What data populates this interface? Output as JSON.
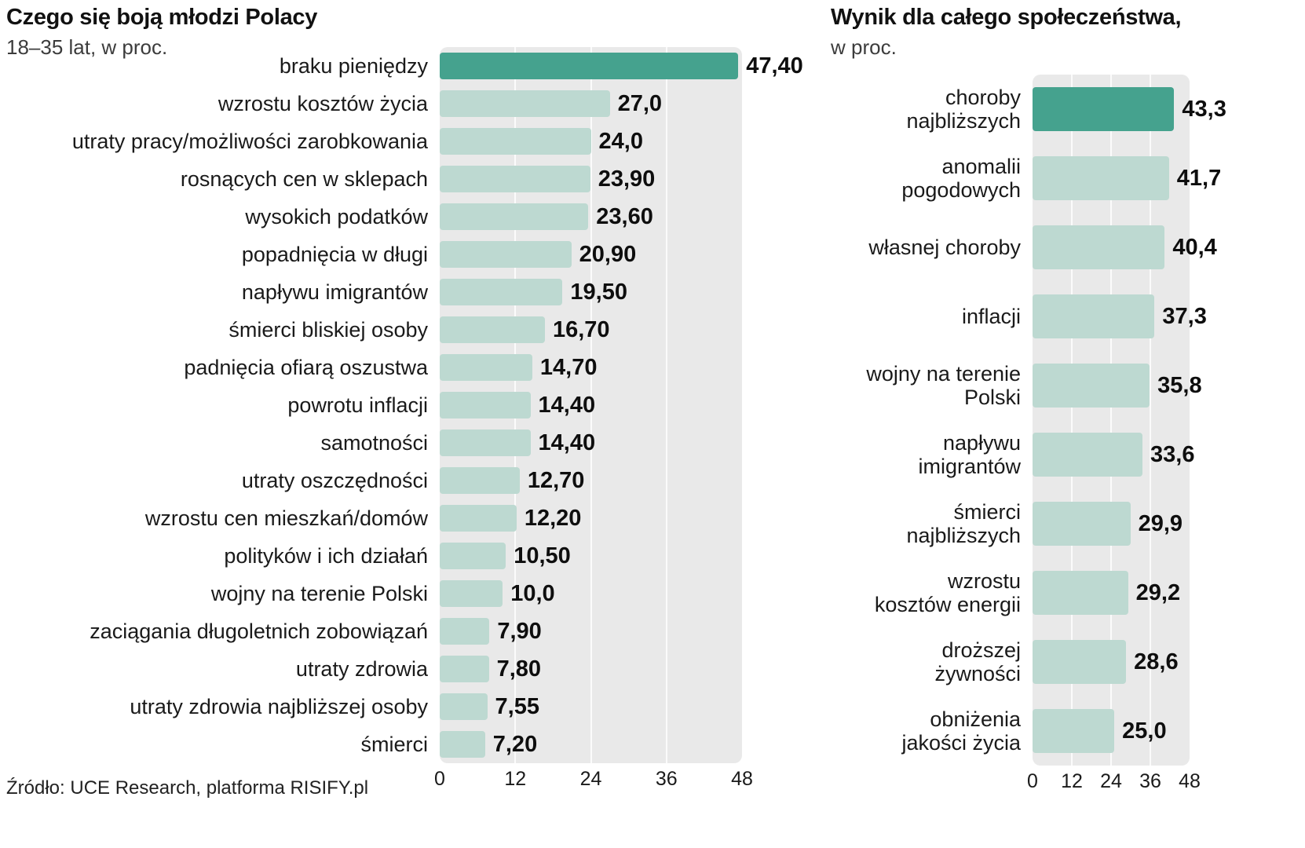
{
  "source": "Źródło: UCE Research, platforma RISIFY.pl",
  "chart_data": [
    {
      "type": "bar",
      "orientation": "horizontal",
      "title": "Czego się boją młodzi Polacy",
      "subtitle": "18–35 lat, w proc.",
      "xlim": [
        0,
        48
      ],
      "xticks": [
        0,
        12,
        24,
        36,
        48
      ],
      "grid": true,
      "legend": "none",
      "highlight_index": 0,
      "bar_color": "#bdd9d1",
      "highlight_color": "#45a28e",
      "plot_bg": "#e9e9e9",
      "categories": [
        "braku pieniędzy",
        "wzrostu kosztów życia",
        "utraty pracy/możliwości zarobkowania",
        "rosnących cen w sklepach",
        "wysokich podatków",
        "popadnięcia w długi",
        "napływu imigrantów",
        "śmierci bliskiej osoby",
        "padnięcia ofiarą oszustwa",
        "powrotu inflacji",
        "samotności",
        "utraty oszczędności",
        "wzrostu cen mieszkań/domów",
        "polityków i ich działań",
        "wojny na terenie Polski",
        "zaciągania długoletnich zobowiązań",
        "utraty zdrowia",
        "utraty zdrowia najbliższej osoby",
        "śmierci"
      ],
      "values": [
        47.4,
        27.0,
        24.0,
        23.9,
        23.6,
        20.9,
        19.5,
        16.7,
        14.7,
        14.4,
        14.4,
        12.7,
        12.2,
        10.5,
        10.0,
        7.9,
        7.8,
        7.55,
        7.2
      ],
      "value_labels": [
        "47,40",
        "27,0",
        "24,0",
        "23,90",
        "23,60",
        "20,90",
        "19,50",
        "16,70",
        "14,70",
        "14,40",
        "14,40",
        "12,70",
        "12,20",
        "10,50",
        "10,0",
        "7,90",
        "7,80",
        "7,55",
        "7,20"
      ]
    },
    {
      "type": "bar",
      "orientation": "horizontal",
      "title": "Wynik dla całego społeczeństwa,",
      "subtitle": "w proc.",
      "xlim": [
        0,
        48
      ],
      "xticks": [
        0,
        12,
        24,
        36,
        48
      ],
      "grid": true,
      "legend": "none",
      "highlight_index": 0,
      "bar_color": "#bdd9d1",
      "highlight_color": "#45a28e",
      "plot_bg": "#e9e9e9",
      "categories": [
        "choroby\nnajbliższych",
        "anomalii\npogodowych",
        "własnej choroby",
        "inflacji",
        "wojny na terenie\nPolski",
        "napływu\nimigrantów",
        "śmierci\nnajbliższych",
        "wzrostu\nkosztów energii",
        "droższej\nżywności",
        "obniżenia\njakości życia"
      ],
      "values": [
        43.3,
        41.7,
        40.4,
        37.3,
        35.8,
        33.6,
        29.9,
        29.2,
        28.6,
        25.0
      ],
      "value_labels": [
        "43,3",
        "41,7",
        "40,4",
        "37,3",
        "35,8",
        "33,6",
        "29,9",
        "29,2",
        "28,6",
        "25,0"
      ]
    }
  ]
}
